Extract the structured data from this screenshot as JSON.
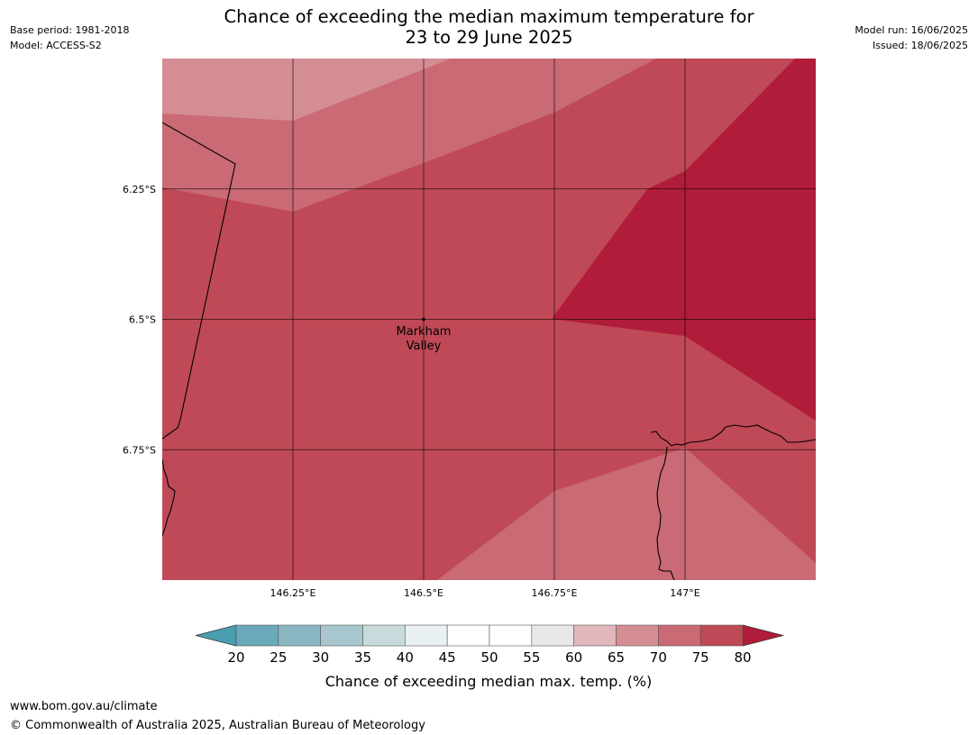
{
  "header": {
    "title_line1": "Chance of exceeding the median maximum temperature for",
    "title_line2": "23 to 29 June 2025",
    "base_period": "Base period: 1981-2018",
    "model": "Model: ACCESS-S2",
    "model_run": "Model run: 16/06/2025",
    "issued": "Issued: 18/06/2025"
  },
  "map": {
    "extent": {
      "lon": [
        146.0,
        147.25
      ],
      "lat": [
        -6.0,
        -7.0
      ]
    },
    "lon_ticks": [
      {
        "value": 146.25,
        "label": "146.25°E"
      },
      {
        "value": 146.5,
        "label": "146.5°E"
      },
      {
        "value": 146.75,
        "label": "146.75°E"
      },
      {
        "value": 147.0,
        "label": "147°E"
      }
    ],
    "lat_ticks": [
      {
        "value": -6.25,
        "label": "6.25°S"
      },
      {
        "value": -6.5,
        "label": "6.5°S"
      },
      {
        "value": -6.75,
        "label": "6.75°S"
      }
    ],
    "place": {
      "name_line1": "Markham",
      "name_line2": "Valley",
      "lon": 146.5,
      "lat": -6.5
    },
    "grid_values": {
      "lons": [
        146.0,
        146.25,
        146.5,
        146.75,
        147.0,
        147.25
      ],
      "lats": [
        -6.0,
        -6.25,
        -6.5,
        -6.75,
        -7.0
      ],
      "note_rows_are_lats_cols_are_lons": true,
      "chance_percent": [
        [
          66,
          66,
          67,
          70,
          74,
          82
        ],
        [
          70,
          69,
          72,
          74,
          82,
          84
        ],
        [
          73,
          73,
          73,
          74,
          82,
          83
        ],
        [
          73,
          73,
          73,
          72,
          73,
          78
        ],
        [
          73,
          73,
          73,
          70,
          70,
          70
        ]
      ]
    }
  },
  "colorbar": {
    "label": "Chance of exceeding median max. temp. (%)",
    "ticks": [
      "20",
      "25",
      "30",
      "35",
      "40",
      "45",
      "50",
      "55",
      "60",
      "65",
      "70",
      "75",
      "80"
    ],
    "below_color": "#4a9eaf",
    "above_color": "#b01c3a",
    "colors": [
      "#6aa9b9",
      "#8bb6c3",
      "#a8c6cd",
      "#c9dadd",
      "#eaf1f3",
      "#ffffff",
      "#ffffff",
      "#e8e8e8",
      "#e2b7bb",
      "#d58d94",
      "#c96a74",
      "#bf4956"
    ]
  },
  "footer": {
    "url": "www.bom.gov.au/climate",
    "copyright": "© Commonwealth of Australia 2025, Australian Bureau of Meteorology"
  }
}
